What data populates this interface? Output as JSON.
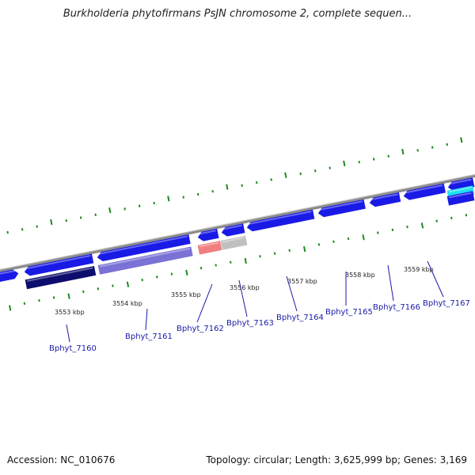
{
  "title": "Burkholderia phytofirmans PsJN chromosome 2, complete sequen...",
  "footer": {
    "accession": "Accession: NC_010676",
    "topology": "Topology: circular; Length: 3,625,999 bp; Genes: 3,169"
  },
  "colors": {
    "backbone": "#8a8a8a",
    "tick": "#1f8a1f",
    "gene_blue": "#1a1ae6",
    "gene_navy": "#0d0d6e",
    "gene_lavender": "#7b72d6",
    "gene_salmon": "#f08080",
    "gene_gray": "#c0c0c0",
    "gene_cyan": "#1ee0f0",
    "label": "#1a1aa8"
  },
  "kbp_labels": [
    "3553 kbp",
    "3554 kbp",
    "3555 kbp",
    "3556 kbp",
    "3557 kbp",
    "3558 kbp",
    "3559 kbp"
  ],
  "gene_labels": [
    "Bphyt_7160",
    "Bphyt_7161",
    "Bphyt_7162",
    "Bphyt_7163",
    "Bphyt_7164",
    "Bphyt_7165",
    "Bphyt_7166",
    "Bphyt_7167"
  ]
}
